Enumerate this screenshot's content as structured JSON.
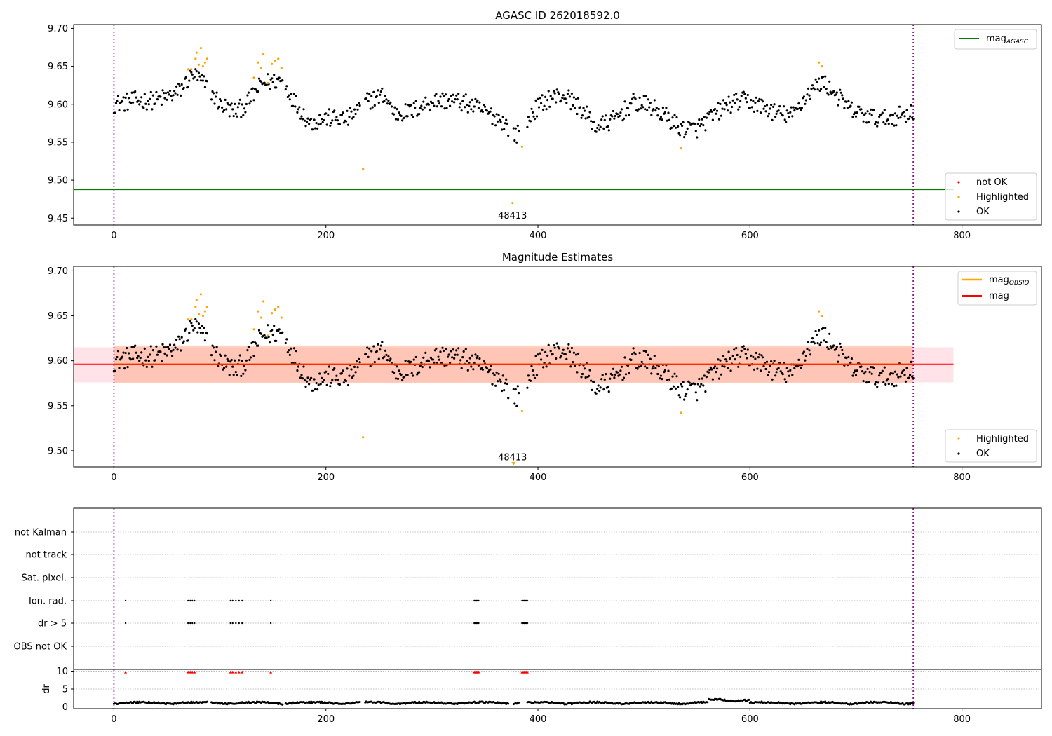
{
  "colors": {
    "ok": "#000000",
    "highlighted": "#ffa500",
    "not_ok": "#ff0000",
    "mag_agasc": "#008000",
    "mag_obsid": "#ffa500",
    "mag": "#ff0000",
    "band_outer": "#ffc0cb",
    "band_inner": "#ffa07a",
    "vline": "#800080",
    "grid": "#b0b0b0"
  },
  "chart_data": [
    {
      "type": "scatter",
      "title": "AGASC ID 262018592.0",
      "xlim": [
        -38,
        875
      ],
      "ylim": [
        9.441,
        9.705
      ],
      "xticks": [
        0,
        200,
        400,
        600,
        800
      ],
      "yticks": [
        9.45,
        9.5,
        9.55,
        9.6,
        9.65,
        9.7
      ],
      "ytick_labels": [
        "9.45",
        "9.50",
        "9.55",
        "9.60",
        "9.65",
        "9.70"
      ],
      "xtick_labels": [
        "0",
        "200",
        "400",
        "600",
        "800"
      ],
      "mag_agasc": 9.488,
      "mag_agasc_x": [
        -38,
        792
      ],
      "vlines": [
        0,
        754
      ],
      "annotation": {
        "text": "48413",
        "x": 376,
        "y": 9.453
      },
      "legend_line": [
        {
          "label": "mag",
          "sub": "AGASC",
          "placement": "upper right"
        }
      ],
      "legend_points": {
        "placement": "lower right",
        "entries": [
          "not OK",
          "Highlighted",
          "OK"
        ]
      },
      "highlighted_points": [
        [
          70,
          9.646
        ],
        [
          73,
          9.646
        ],
        [
          77,
          9.66
        ],
        [
          78,
          9.668
        ],
        [
          80,
          9.652
        ],
        [
          82,
          9.674
        ],
        [
          84,
          9.65
        ],
        [
          86,
          9.655
        ],
        [
          88,
          9.66
        ],
        [
          132,
          9.635
        ],
        [
          136,
          9.655
        ],
        [
          139,
          9.648
        ],
        [
          141,
          9.666
        ],
        [
          145,
          9.628
        ],
        [
          149,
          9.653
        ],
        [
          152,
          9.657
        ],
        [
          155,
          9.66
        ],
        [
          158,
          9.648
        ],
        [
          235,
          9.515
        ],
        [
          376,
          9.47
        ],
        [
          385,
          9.544
        ],
        [
          535,
          9.542
        ],
        [
          665,
          9.655
        ],
        [
          668,
          9.65
        ]
      ]
    },
    {
      "type": "scatter",
      "title": "Magnitude Estimates",
      "xlim": [
        -38,
        875
      ],
      "ylim": [
        9.482,
        9.705
      ],
      "xticks": [
        0,
        200,
        400,
        600,
        800
      ],
      "yticks": [
        9.5,
        9.55,
        9.6,
        9.65,
        9.7
      ],
      "ytick_labels": [
        "9.50",
        "9.55",
        "9.60",
        "9.65",
        "9.70"
      ],
      "xtick_labels": [
        "0",
        "200",
        "400",
        "600",
        "800"
      ],
      "mag": 9.596,
      "mag_x": [
        -38,
        792
      ],
      "mag_obsid": 9.596,
      "mag_obsid_x": [
        0,
        754
      ],
      "band_outer": [
        9.576,
        9.615
      ],
      "band_inner": [
        9.575,
        9.617
      ],
      "vlines": [
        0,
        754
      ],
      "annotation": {
        "text": "48413",
        "x": 376,
        "y": 9.4925
      },
      "marker": {
        "x": 377,
        "y": 9.486
      },
      "legend_line": [
        {
          "label": "mag",
          "sub": "OBSID",
          "placement": "upper right"
        },
        {
          "label": "mag",
          "sub": "",
          "placement": "upper right"
        }
      ],
      "legend_points": {
        "placement": "lower right",
        "entries": [
          "Highlighted",
          "OK"
        ]
      },
      "highlighted_points": [
        [
          70,
          9.646
        ],
        [
          73,
          9.646
        ],
        [
          77,
          9.66
        ],
        [
          78,
          9.668
        ],
        [
          80,
          9.652
        ],
        [
          82,
          9.674
        ],
        [
          84,
          9.65
        ],
        [
          86,
          9.655
        ],
        [
          88,
          9.66
        ],
        [
          132,
          9.635
        ],
        [
          136,
          9.655
        ],
        [
          139,
          9.648
        ],
        [
          141,
          9.666
        ],
        [
          145,
          9.628
        ],
        [
          149,
          9.653
        ],
        [
          152,
          9.657
        ],
        [
          155,
          9.66
        ],
        [
          158,
          9.648
        ],
        [
          235,
          9.515
        ],
        [
          385,
          9.544
        ],
        [
          535,
          9.542
        ],
        [
          665,
          9.655
        ],
        [
          668,
          9.65
        ]
      ]
    },
    {
      "type": "scatter",
      "title": "",
      "xlim": [
        -38,
        875
      ],
      "categories": [
        "not Kalman",
        "not track",
        "Sat. pixel.",
        "Ion. rad.",
        "dr > 5",
        "OBS not OK"
      ],
      "vlines": [
        0,
        754
      ],
      "flag_points": {
        "Ion. rad.": [
          11,
          70,
          72,
          74,
          76,
          110,
          112,
          115,
          118,
          121,
          148,
          340,
          341,
          342,
          343,
          344,
          385,
          386,
          387,
          388,
          389,
          390
        ],
        "dr > 5": [
          11,
          70,
          72,
          74,
          76,
          110,
          112,
          115,
          118,
          121,
          148,
          340,
          341,
          342,
          343,
          344,
          385,
          386,
          387,
          388,
          389,
          390
        ]
      }
    },
    {
      "type": "scatter",
      "title": "",
      "xlim": [
        -38,
        875
      ],
      "ylim": [
        -0.5,
        10.5
      ],
      "yticks": [
        0,
        5,
        10
      ],
      "ytick_labels": [
        "0",
        "5",
        "10"
      ],
      "xticks": [
        0,
        200,
        400,
        600,
        800
      ],
      "xtick_labels": [
        "0",
        "200",
        "400",
        "600",
        "800"
      ],
      "ylabel": "dr",
      "vlines": [
        0,
        754
      ],
      "clipped_points_y": 9.8,
      "clipped_points_x": [
        11,
        70,
        72,
        74,
        76,
        110,
        112,
        115,
        118,
        121,
        148,
        340,
        341,
        342,
        343,
        344,
        385,
        386,
        387,
        388,
        389,
        390
      ]
    }
  ]
}
